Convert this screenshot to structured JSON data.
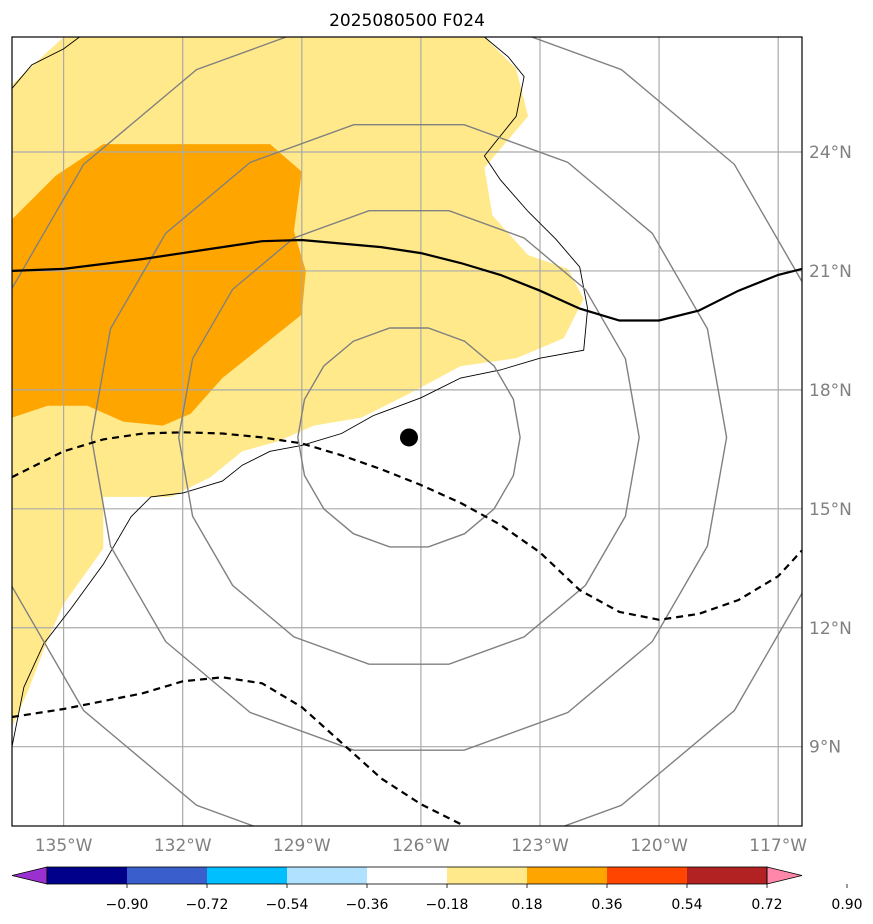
{
  "chart_data": {
    "type": "map",
    "title": "2025080500 F024",
    "x_ticks": [
      {
        "value": -135,
        "label": "135°W"
      },
      {
        "value": -132,
        "label": "132°W"
      },
      {
        "value": -129,
        "label": "129°W"
      },
      {
        "value": -126,
        "label": "126°W"
      },
      {
        "value": -123,
        "label": "123°W"
      },
      {
        "value": -120,
        "label": "120°W"
      },
      {
        "value": -117,
        "label": "117°W"
      }
    ],
    "y_ticks": [
      {
        "value": 9,
        "label": "9°N"
      },
      {
        "value": 12,
        "label": "12°N"
      },
      {
        "value": 15,
        "label": "15°N"
      },
      {
        "value": 18,
        "label": "18°N"
      },
      {
        "value": 21,
        "label": "21°N"
      },
      {
        "value": 24,
        "label": "24°N"
      }
    ],
    "xlim": [
      -136.3,
      -116.4
    ],
    "ylim": [
      7.0,
      26.9
    ],
    "storm_center": {
      "lon": -126.3,
      "lat": 16.8
    },
    "range_rings_deg": [
      2.8,
      5.8,
      8.0,
      10.7
    ],
    "colorbar": {
      "ticks": [
        "−0.90",
        "−0.72",
        "−0.54",
        "−0.36",
        "−0.18",
        "0.18",
        "0.36",
        "0.54",
        "0.72",
        "0.90"
      ],
      "bounds": [
        -0.9,
        -0.72,
        -0.54,
        -0.36,
        -0.18,
        0.18,
        0.36,
        0.54,
        0.72,
        0.9
      ],
      "colors": [
        "#9b30d0",
        "#00008b",
        "#3a5fcd",
        "#00bfff",
        "#b0e2ff",
        "#ffffff",
        "#ffe98a",
        "#ffa500",
        "#ff4500",
        "#b22222",
        "#ff88aa"
      ]
    },
    "contour_zero": [
      [
        -136.3,
        21.0
      ],
      [
        -135,
        21.05
      ],
      [
        -133,
        21.3
      ],
      [
        -131,
        21.6
      ],
      [
        -130,
        21.75
      ],
      [
        -129,
        21.78
      ],
      [
        -127,
        21.6
      ],
      [
        -126,
        21.45
      ],
      [
        -125,
        21.2
      ],
      [
        -124,
        20.9
      ],
      [
        -123,
        20.5
      ],
      [
        -122,
        20.05
      ],
      [
        -121,
        19.75
      ],
      [
        -120,
        19.75
      ],
      [
        -119,
        20.0
      ],
      [
        -118,
        20.5
      ],
      [
        -117,
        20.9
      ],
      [
        -116.4,
        21.05
      ]
    ],
    "contour_neg_upper": [
      [
        -136.3,
        15.8
      ],
      [
        -135,
        16.45
      ],
      [
        -134,
        16.75
      ],
      [
        -133,
        16.9
      ],
      [
        -132,
        16.93
      ],
      [
        -131,
        16.9
      ],
      [
        -130,
        16.8
      ],
      [
        -129,
        16.65
      ],
      [
        -128,
        16.35
      ],
      [
        -127,
        16.0
      ],
      [
        -126,
        15.6
      ],
      [
        -125,
        15.15
      ],
      [
        -124,
        14.6
      ],
      [
        -123,
        13.9
      ],
      [
        -122,
        12.95
      ],
      [
        -121,
        12.4
      ],
      [
        -120,
        12.2
      ],
      [
        -119,
        12.35
      ],
      [
        -118,
        12.7
      ],
      [
        -117,
        13.3
      ],
      [
        -116.4,
        13.95
      ]
    ],
    "contour_neg_lower": [
      [
        -136.3,
        9.75
      ],
      [
        -135,
        9.95
      ],
      [
        -134,
        10.15
      ],
      [
        -133,
        10.35
      ],
      [
        -132,
        10.65
      ],
      [
        -131,
        10.75
      ],
      [
        -130,
        10.6
      ],
      [
        -129,
        10.0
      ],
      [
        -128,
        9.1
      ],
      [
        -127,
        8.2
      ],
      [
        -126,
        7.55
      ],
      [
        -125,
        7.05
      ]
    ],
    "shade_036": [
      [
        -136.3,
        25.7
      ],
      [
        -135,
        26.9
      ],
      [
        -124.4,
        26.9
      ],
      [
        -123.6,
        26.1
      ],
      [
        -123.3,
        24.9
      ],
      [
        -124.4,
        23.6
      ],
      [
        -124.2,
        22.4
      ],
      [
        -123.3,
        21.4
      ],
      [
        -122.3,
        21.05
      ],
      [
        -121.9,
        20.3
      ],
      [
        -122.4,
        19.3
      ],
      [
        -123.6,
        18.8
      ],
      [
        -125.0,
        18.6
      ],
      [
        -126.3,
        17.9
      ],
      [
        -127.5,
        17.3
      ],
      [
        -128.7,
        17.1
      ],
      [
        -129.6,
        16.7
      ],
      [
        -130.5,
        16.45
      ],
      [
        -131.3,
        15.8
      ],
      [
        -132.3,
        15.3
      ],
      [
        -134.0,
        15.3
      ],
      [
        -134.0,
        14.0
      ],
      [
        -135.0,
        12.6
      ],
      [
        -135.4,
        11.7
      ],
      [
        -135.9,
        10.4
      ],
      [
        -136.3,
        9.5
      ]
    ],
    "shade_054": [
      [
        -136.3,
        22.3
      ],
      [
        -135.2,
        23.4
      ],
      [
        -134.0,
        24.2
      ],
      [
        -132.5,
        24.2
      ],
      [
        -131.0,
        24.2
      ],
      [
        -129.8,
        24.2
      ],
      [
        -129.0,
        23.5
      ],
      [
        -129.2,
        22.0
      ],
      [
        -128.9,
        21.0
      ],
      [
        -129.0,
        19.9
      ],
      [
        -130.0,
        19.1
      ],
      [
        -131.0,
        18.3
      ],
      [
        -131.8,
        17.4
      ],
      [
        -132.5,
        17.1
      ],
      [
        -133.5,
        17.2
      ],
      [
        -134.4,
        17.6
      ],
      [
        -135.4,
        17.6
      ],
      [
        -136.3,
        17.3
      ]
    ],
    "coastline_a": [
      [
        -136.3,
        25.6
      ],
      [
        -135.8,
        26.2
      ],
      [
        -135.0,
        26.6
      ],
      [
        -134.6,
        26.9
      ]
    ],
    "coastline_b": [
      [
        -124.4,
        26.9
      ],
      [
        -123.8,
        26.4
      ],
      [
        -123.4,
        25.9
      ],
      [
        -123.6,
        24.9
      ],
      [
        -124.4,
        23.9
      ],
      [
        -124.0,
        23.3
      ],
      [
        -123.3,
        22.5
      ],
      [
        -122.6,
        21.8
      ],
      [
        -122.0,
        21.1
      ],
      [
        -121.8,
        20.05
      ],
      [
        -121.9,
        19.0
      ],
      [
        -123.0,
        18.8
      ],
      [
        -124.0,
        18.5
      ],
      [
        -125.0,
        18.3
      ],
      [
        -126.0,
        17.8
      ],
      [
        -127.2,
        17.35
      ],
      [
        -128.0,
        16.9
      ],
      [
        -129.0,
        16.6
      ],
      [
        -129.8,
        16.45
      ],
      [
        -130.5,
        16.1
      ],
      [
        -131.0,
        15.7
      ],
      [
        -132.0,
        15.4
      ],
      [
        -132.8,
        15.3
      ],
      [
        -133.3,
        14.8
      ],
      [
        -134.0,
        13.6
      ],
      [
        -134.8,
        12.5
      ],
      [
        -135.5,
        11.6
      ],
      [
        -136.0,
        10.5
      ],
      [
        -136.3,
        9.0
      ]
    ]
  }
}
